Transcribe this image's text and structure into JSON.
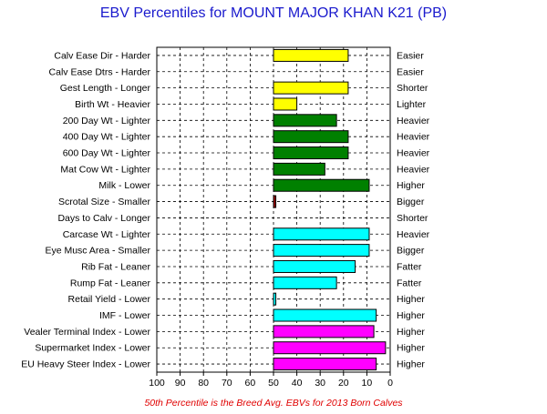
{
  "chart_data": {
    "type": "bar",
    "title": "EBV Percentiles for MOUNT MAJOR KHAN K21 (PB)",
    "footnote": "50th Percentile is the Breed Avg. EBVs for 2013 Born Calves",
    "xlim": [
      100,
      0
    ],
    "x_ticks": [
      "100",
      "90",
      "80",
      "70",
      "60",
      "50",
      "40",
      "30",
      "20",
      "10",
      "0"
    ],
    "baseline": 50,
    "grid": true,
    "rows": [
      {
        "left": "Calv Ease Dir - Harder",
        "right": "Easier",
        "value": 18,
        "color": "#ffff00"
      },
      {
        "left": "Calv Ease Dtrs - Harder",
        "right": "Easier",
        "value": null,
        "color": "#ffff00"
      },
      {
        "left": "Gest Length - Longer",
        "right": "Shorter",
        "value": 18,
        "color": "#ffff00"
      },
      {
        "left": "Birth Wt - Heavier",
        "right": "Lighter",
        "value": 40,
        "color": "#ffff00"
      },
      {
        "left": "200 Day Wt - Lighter",
        "right": "Heavier",
        "value": 23,
        "color": "#008000"
      },
      {
        "left": "400 Day Wt - Lighter",
        "right": "Heavier",
        "value": 18,
        "color": "#008000"
      },
      {
        "left": "600 Day Wt - Lighter",
        "right": "Heavier",
        "value": 18,
        "color": "#008000"
      },
      {
        "left": "Mat Cow Wt - Lighter",
        "right": "Heavier",
        "value": 28,
        "color": "#008000"
      },
      {
        "left": "Milk - Lower",
        "right": "Higher",
        "value": 9,
        "color": "#008000"
      },
      {
        "left": "Scrotal Size - Smaller",
        "right": "Bigger",
        "value": 49,
        "color": "#990000"
      },
      {
        "left": "Days to Calv - Longer",
        "right": "Shorter",
        "value": null,
        "color": "#990000"
      },
      {
        "left": "Carcase Wt - Lighter",
        "right": "Heavier",
        "value": 9,
        "color": "#00ffff"
      },
      {
        "left": "Eye Musc Area - Smaller",
        "right": "Bigger",
        "value": 9,
        "color": "#00ffff"
      },
      {
        "left": "Rib Fat - Leaner",
        "right": "Fatter",
        "value": 15,
        "color": "#00ffff"
      },
      {
        "left": "Rump Fat - Leaner",
        "right": "Fatter",
        "value": 23,
        "color": "#00ffff"
      },
      {
        "left": "Retail Yield - Lower",
        "right": "Higher",
        "value": 49,
        "color": "#00ffff"
      },
      {
        "left": "IMF - Lower",
        "right": "Higher",
        "value": 6,
        "color": "#00ffff"
      },
      {
        "left": "Vealer Terminal Index - Lower",
        "right": "Higher",
        "value": 7,
        "color": "#ff00ff"
      },
      {
        "left": "Supermarket Index - Lower",
        "right": "Higher",
        "value": 2,
        "color": "#ff00ff"
      },
      {
        "left": "EU Heavy Steer Index - Lower",
        "right": "Higher",
        "value": 6,
        "color": "#ff00ff"
      }
    ]
  }
}
